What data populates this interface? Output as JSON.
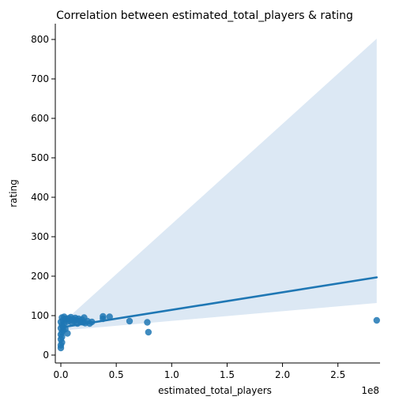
{
  "chart_data": {
    "type": "scatter",
    "title": "Correlation between estimated_total_players & rating",
    "xlabel": "estimated_total_players",
    "ylabel": "rating",
    "x_multiplier_label": "1e8",
    "x_ticks": [
      0.0,
      0.5,
      1.0,
      1.5,
      2.0,
      2.5
    ],
    "x_tick_labels": [
      "0.0",
      "0.5",
      "1.0",
      "1.5",
      "2.0",
      "2.5"
    ],
    "y_ticks": [
      0,
      100,
      200,
      300,
      400,
      500,
      600,
      700,
      800
    ],
    "y_tick_labels": [
      "0",
      "100",
      "200",
      "300",
      "400",
      "500",
      "600",
      "700",
      "800"
    ],
    "xlim": [
      -0.05,
      2.88
    ],
    "ylim": [
      -20,
      840
    ],
    "grid": false,
    "colors": {
      "points": "#1f77b4",
      "line": "#1f77b4",
      "band": "#dce8f4"
    },
    "points": [
      {
        "x": 0.0,
        "y": 18
      },
      {
        "x": 0.0,
        "y": 25
      },
      {
        "x": 0.01,
        "y": 32
      },
      {
        "x": 0.0,
        "y": 40
      },
      {
        "x": 0.01,
        "y": 46
      },
      {
        "x": 0.0,
        "y": 52
      },
      {
        "x": 0.01,
        "y": 58
      },
      {
        "x": 0.02,
        "y": 63
      },
      {
        "x": 0.0,
        "y": 68
      },
      {
        "x": 0.02,
        "y": 72
      },
      {
        "x": 0.01,
        "y": 76
      },
      {
        "x": 0.03,
        "y": 80
      },
      {
        "x": 0.0,
        "y": 84
      },
      {
        "x": 0.02,
        "y": 88
      },
      {
        "x": 0.04,
        "y": 92
      },
      {
        "x": 0.01,
        "y": 95
      },
      {
        "x": 0.03,
        "y": 97
      },
      {
        "x": 0.05,
        "y": 90
      },
      {
        "x": 0.06,
        "y": 85
      },
      {
        "x": 0.07,
        "y": 93
      },
      {
        "x": 0.08,
        "y": 88
      },
      {
        "x": 0.09,
        "y": 96
      },
      {
        "x": 0.1,
        "y": 82
      },
      {
        "x": 0.11,
        "y": 91
      },
      {
        "x": 0.12,
        "y": 86
      },
      {
        "x": 0.13,
        "y": 94
      },
      {
        "x": 0.14,
        "y": 89
      },
      {
        "x": 0.15,
        "y": 80
      },
      {
        "x": 0.16,
        "y": 92
      },
      {
        "x": 0.17,
        "y": 87
      },
      {
        "x": 0.18,
        "y": 84
      },
      {
        "x": 0.19,
        "y": 90
      },
      {
        "x": 0.2,
        "y": 83
      },
      {
        "x": 0.21,
        "y": 95
      },
      {
        "x": 0.22,
        "y": 81
      },
      {
        "x": 0.24,
        "y": 86
      },
      {
        "x": 0.26,
        "y": 80
      },
      {
        "x": 0.28,
        "y": 84
      },
      {
        "x": 0.06,
        "y": 55
      },
      {
        "x": 0.04,
        "y": 66
      },
      {
        "x": 0.38,
        "y": 92
      },
      {
        "x": 0.38,
        "y": 98
      },
      {
        "x": 0.44,
        "y": 97
      },
      {
        "x": 0.62,
        "y": 86
      },
      {
        "x": 0.78,
        "y": 83
      },
      {
        "x": 0.79,
        "y": 58
      },
      {
        "x": 2.85,
        "y": 88
      }
    ],
    "regression_line": {
      "x": [
        0.0,
        2.85
      ],
      "y": [
        70,
        197
      ]
    },
    "confidence_band": {
      "x_left": 0.0,
      "x_right": 2.85,
      "y_lower_left": 62,
      "y_upper_left": 78,
      "y_lower_right": 132,
      "y_upper_right": 802
    }
  }
}
